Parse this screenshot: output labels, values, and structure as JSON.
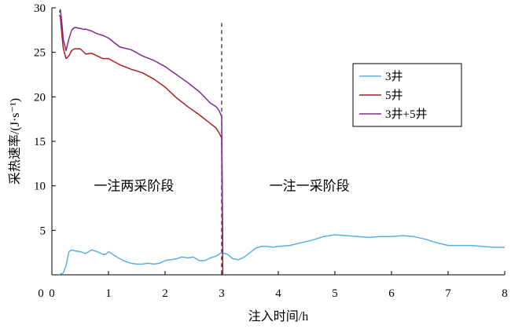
{
  "chart_data": {
    "type": "line",
    "xlabel": "注入时间/h",
    "ylabel": "采热速率/(J·s⁻¹)",
    "xlim": [
      0,
      8
    ],
    "ylim": [
      0,
      30
    ],
    "xticks": [
      0,
      1,
      2,
      3,
      4,
      5,
      6,
      7,
      8
    ],
    "yticks": [
      5,
      10,
      15,
      20,
      25,
      30
    ],
    "grid": false,
    "legend_placement": "top-right",
    "annotations": [
      {
        "text": "一注两采阶段",
        "x": 1.45,
        "y": 9.5
      },
      {
        "text": "一注一采阶段",
        "x": 4.55,
        "y": 9.5
      }
    ],
    "vline": {
      "x": 3.0,
      "style": "dashed"
    },
    "series": [
      {
        "name": "3井",
        "color": "#5aafe6",
        "x": [
          0.13,
          0.15,
          0.2,
          0.25,
          0.3,
          0.35,
          0.4,
          0.5,
          0.6,
          0.65,
          0.7,
          0.8,
          0.9,
          0.95,
          1.0,
          1.1,
          1.2,
          1.3,
          1.4,
          1.5,
          1.6,
          1.7,
          1.8,
          1.9,
          2.0,
          2.1,
          2.2,
          2.3,
          2.4,
          2.5,
          2.6,
          2.7,
          2.8,
          2.9,
          2.95,
          3.0,
          3.1,
          3.2,
          3.3,
          3.4,
          3.5,
          3.6,
          3.7,
          3.8,
          3.9,
          4.0,
          4.2,
          4.4,
          4.6,
          4.8,
          5.0,
          5.2,
          5.4,
          5.6,
          5.8,
          6.0,
          6.2,
          6.4,
          6.6,
          6.8,
          7.0,
          7.2,
          7.4,
          7.6,
          7.8,
          8.0
        ],
        "y": [
          0.0,
          0.1,
          0.2,
          1.0,
          2.6,
          2.8,
          2.7,
          2.6,
          2.4,
          2.6,
          2.8,
          2.6,
          2.3,
          2.3,
          2.6,
          2.2,
          1.8,
          1.5,
          1.3,
          1.2,
          1.2,
          1.3,
          1.2,
          1.3,
          1.6,
          1.7,
          1.8,
          2.0,
          1.9,
          2.0,
          1.6,
          1.6,
          1.9,
          2.1,
          2.3,
          2.5,
          2.3,
          1.8,
          1.7,
          2.0,
          2.5,
          3.0,
          3.2,
          3.2,
          3.1,
          3.2,
          3.3,
          3.6,
          3.9,
          4.3,
          4.5,
          4.4,
          4.3,
          4.2,
          4.3,
          4.3,
          4.4,
          4.3,
          4.0,
          3.6,
          3.3,
          3.3,
          3.3,
          3.2,
          3.1,
          3.1
        ]
      },
      {
        "name": "5井",
        "color": "#b01e22",
        "x": [
          0.13,
          0.15,
          0.17,
          0.2,
          0.25,
          0.3,
          0.35,
          0.4,
          0.5,
          0.55,
          0.6,
          0.7,
          0.8,
          0.9,
          1.0,
          1.2,
          1.4,
          1.6,
          1.8,
          2.0,
          2.2,
          2.4,
          2.6,
          2.8,
          2.9,
          2.95,
          3.0,
          3.02
        ],
        "y": [
          29.2,
          29.0,
          27.5,
          25.5,
          24.3,
          24.6,
          25.2,
          25.4,
          25.4,
          25.1,
          24.8,
          24.9,
          24.6,
          24.3,
          24.3,
          23.6,
          23.1,
          22.7,
          22.0,
          21.1,
          19.9,
          18.9,
          18.0,
          17.0,
          16.5,
          16.0,
          15.4,
          0.0
        ]
      },
      {
        "name": "3井+5井",
        "color": "#7b2c8e",
        "x": [
          0.13,
          0.15,
          0.18,
          0.2,
          0.25,
          0.3,
          0.35,
          0.4,
          0.5,
          0.55,
          0.6,
          0.7,
          0.8,
          0.9,
          1.0,
          1.2,
          1.4,
          1.6,
          1.8,
          2.0,
          2.2,
          2.4,
          2.6,
          2.8,
          2.9,
          2.95,
          3.0,
          3.02
        ],
        "y": [
          29.5,
          29.8,
          28.0,
          26.5,
          25.2,
          26.5,
          27.5,
          27.8,
          27.7,
          27.6,
          27.6,
          27.4,
          27.1,
          26.9,
          26.6,
          25.6,
          25.3,
          24.6,
          24.1,
          23.4,
          22.5,
          21.6,
          20.6,
          19.3,
          18.9,
          18.5,
          17.8,
          2.5
        ]
      }
    ]
  }
}
